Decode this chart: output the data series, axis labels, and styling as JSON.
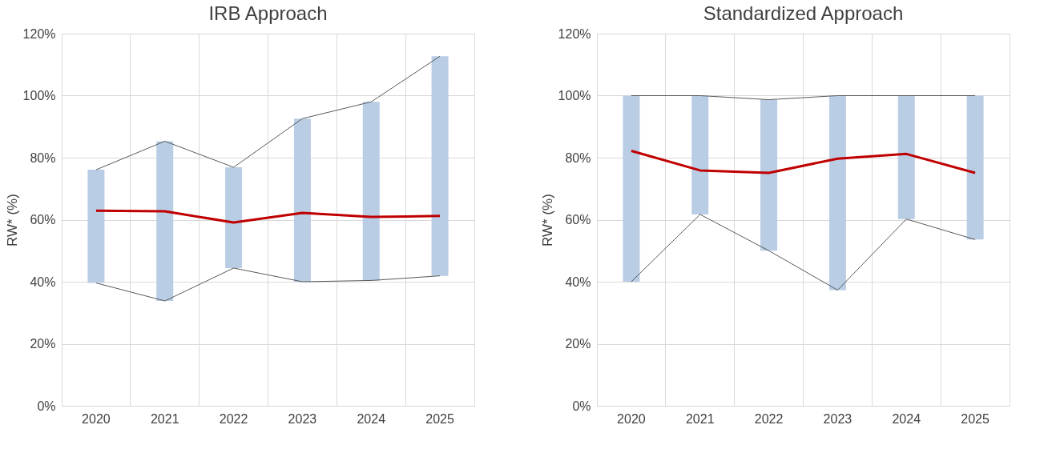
{
  "chart_data": [
    {
      "type": "bar",
      "title": "IRB Approach",
      "ylabel": "RW* (%)",
      "categories": [
        "2020",
        "2021",
        "2022",
        "2023",
        "2024",
        "2025"
      ],
      "ylim": [
        0,
        120
      ],
      "yticks": [
        {
          "value": 0,
          "label": "0%"
        },
        {
          "value": 20,
          "label": "20%"
        },
        {
          "value": 40,
          "label": "40%"
        },
        {
          "value": 60,
          "label": "60%"
        },
        {
          "value": 80,
          "label": "80%"
        },
        {
          "value": 100,
          "label": "100%"
        },
        {
          "value": 120,
          "label": "120%"
        }
      ],
      "grid": true,
      "series": [
        {
          "color": "#b9cde5",
          "base": [
            39.6,
            33.8,
            44.4,
            40.0,
            40.4,
            41.9
          ],
          "values": [
            36.5,
            51.5,
            32.5,
            52.6,
            57.6,
            70.8
          ]
        },
        {
          "type": "line",
          "color": "#595959",
          "values": [
            76.1,
            85.3,
            76.9,
            92.6,
            98.0,
            112.7
          ]
        },
        {
          "type": "line",
          "color": "#595959",
          "values": [
            39.6,
            33.8,
            44.4,
            40.0,
            40.4,
            41.9
          ]
        },
        {
          "type": "line",
          "color": "#c00000",
          "values": [
            62.9,
            62.7,
            59.1,
            62.2,
            60.9,
            61.2
          ]
        }
      ]
    },
    {
      "type": "bar",
      "title": "Standardized Approach",
      "ylabel": "RW* (%)",
      "categories": [
        "2020",
        "2021",
        "2022",
        "2023",
        "2024",
        "2025"
      ],
      "ylim": [
        0,
        120
      ],
      "yticks": [
        {
          "value": 0,
          "label": "0%"
        },
        {
          "value": 20,
          "label": "20%"
        },
        {
          "value": 40,
          "label": "40%"
        },
        {
          "value": 60,
          "label": "60%"
        },
        {
          "value": 80,
          "label": "80%"
        },
        {
          "value": 100,
          "label": "100%"
        },
        {
          "value": 120,
          "label": "120%"
        }
      ],
      "grid": true,
      "series": [
        {
          "color": "#b9cde5",
          "base": [
            40.0,
            61.7,
            50.0,
            37.3,
            60.2,
            53.6
          ],
          "values": [
            60.0,
            38.3,
            48.7,
            62.7,
            39.8,
            46.4
          ]
        },
        {
          "type": "line",
          "color": "#595959",
          "values": [
            100.0,
            100.0,
            98.7,
            100.0,
            100.0,
            100.0
          ]
        },
        {
          "type": "line",
          "color": "#595959",
          "values": [
            40.0,
            61.7,
            50.0,
            37.3,
            60.2,
            53.6
          ]
        },
        {
          "type": "line",
          "color": "#c00000",
          "values": [
            82.2,
            75.9,
            75.1,
            79.7,
            81.2,
            75.1
          ]
        }
      ]
    }
  ]
}
